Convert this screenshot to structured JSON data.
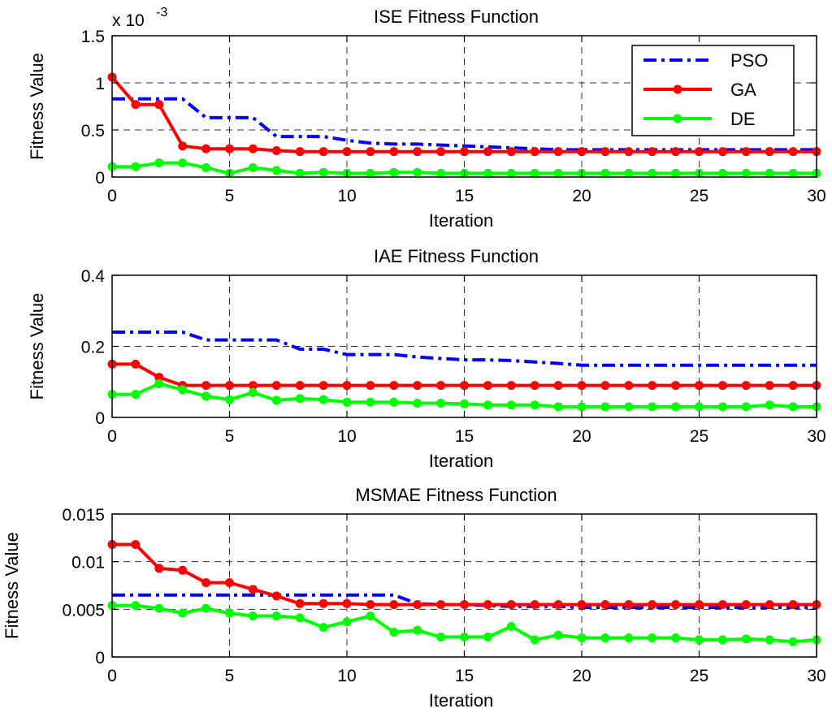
{
  "chart_data": [
    {
      "type": "line",
      "title": "ISE Fitness Function",
      "xlabel": "Iteration",
      "ylabel": "Fitness Value",
      "exponent_label": "x 10",
      "exponent_power": "-3",
      "xlim": [
        0,
        30
      ],
      "ylim": [
        0,
        1.5
      ],
      "xticks": [
        0,
        5,
        10,
        15,
        20,
        25,
        30
      ],
      "yticks": [
        0,
        0.5,
        1,
        1.5
      ],
      "ytick_labels": [
        "0",
        "0.5",
        "1",
        "1.5"
      ],
      "grid": true,
      "legend": {
        "placement": "top-right",
        "entries": [
          "PSO",
          "GA",
          "DE"
        ]
      },
      "x": [
        0,
        1,
        2,
        3,
        4,
        5,
        6,
        7,
        8,
        9,
        10,
        11,
        12,
        13,
        14,
        15,
        16,
        17,
        18,
        19,
        20,
        21,
        22,
        23,
        24,
        25,
        26,
        27,
        28,
        29,
        30
      ],
      "series": [
        {
          "name": "PSO",
          "color": "#0000ff",
          "style": "dashdot",
          "markers": false,
          "values": [
            0.83,
            0.83,
            0.83,
            0.83,
            0.63,
            0.63,
            0.63,
            0.43,
            0.43,
            0.43,
            0.39,
            0.36,
            0.35,
            0.35,
            0.34,
            0.33,
            0.32,
            0.31,
            0.3,
            0.29,
            0.29,
            0.29,
            0.29,
            0.29,
            0.29,
            0.29,
            0.29,
            0.29,
            0.29,
            0.29,
            0.29
          ]
        },
        {
          "name": "GA",
          "color": "#ff0000",
          "style": "solid",
          "markers": true,
          "values": [
            1.06,
            0.77,
            0.77,
            0.33,
            0.3,
            0.3,
            0.3,
            0.28,
            0.27,
            0.27,
            0.27,
            0.27,
            0.27,
            0.27,
            0.27,
            0.27,
            0.27,
            0.27,
            0.27,
            0.27,
            0.27,
            0.27,
            0.27,
            0.27,
            0.27,
            0.27,
            0.27,
            0.27,
            0.27,
            0.27,
            0.27
          ]
        },
        {
          "name": "DE",
          "color": "#00ff00",
          "style": "solid",
          "markers": true,
          "values": [
            0.11,
            0.11,
            0.15,
            0.15,
            0.1,
            0.04,
            0.1,
            0.07,
            0.04,
            0.05,
            0.04,
            0.04,
            0.05,
            0.05,
            0.04,
            0.04,
            0.04,
            0.04,
            0.04,
            0.04,
            0.04,
            0.04,
            0.04,
            0.04,
            0.04,
            0.04,
            0.04,
            0.04,
            0.04,
            0.04,
            0.04
          ]
        }
      ]
    },
    {
      "type": "line",
      "title": "IAE Fitness Function",
      "xlabel": "Iteration",
      "ylabel": "Fitness Value",
      "xlim": [
        0,
        30
      ],
      "ylim": [
        0,
        0.4
      ],
      "xticks": [
        0,
        5,
        10,
        15,
        20,
        25,
        30
      ],
      "yticks": [
        0,
        0.2,
        0.4
      ],
      "ytick_labels": [
        "0",
        "0.2",
        "0.4"
      ],
      "grid": true,
      "x": [
        0,
        1,
        2,
        3,
        4,
        5,
        6,
        7,
        8,
        9,
        10,
        11,
        12,
        13,
        14,
        15,
        16,
        17,
        18,
        19,
        20,
        21,
        22,
        23,
        24,
        25,
        26,
        27,
        28,
        29,
        30
      ],
      "series": [
        {
          "name": "PSO",
          "color": "#0000ff",
          "style": "dashdot",
          "markers": false,
          "values": [
            0.24,
            0.24,
            0.24,
            0.24,
            0.218,
            0.218,
            0.218,
            0.218,
            0.192,
            0.192,
            0.177,
            0.177,
            0.177,
            0.17,
            0.166,
            0.162,
            0.162,
            0.16,
            0.156,
            0.152,
            0.147,
            0.147,
            0.147,
            0.147,
            0.147,
            0.147,
            0.147,
            0.147,
            0.147,
            0.147,
            0.147
          ]
        },
        {
          "name": "GA",
          "color": "#ff0000",
          "style": "solid",
          "markers": true,
          "values": [
            0.15,
            0.15,
            0.113,
            0.09,
            0.09,
            0.09,
            0.09,
            0.09,
            0.09,
            0.09,
            0.09,
            0.09,
            0.09,
            0.09,
            0.09,
            0.09,
            0.09,
            0.09,
            0.09,
            0.09,
            0.09,
            0.09,
            0.09,
            0.09,
            0.09,
            0.09,
            0.09,
            0.09,
            0.09,
            0.09,
            0.09
          ]
        },
        {
          "name": "DE",
          "color": "#00ff00",
          "style": "solid",
          "markers": true,
          "values": [
            0.065,
            0.065,
            0.095,
            0.078,
            0.06,
            0.05,
            0.07,
            0.048,
            0.053,
            0.05,
            0.043,
            0.043,
            0.043,
            0.04,
            0.04,
            0.038,
            0.035,
            0.035,
            0.035,
            0.03,
            0.03,
            0.03,
            0.03,
            0.03,
            0.03,
            0.03,
            0.03,
            0.03,
            0.035,
            0.03,
            0.03
          ]
        }
      ]
    },
    {
      "type": "line",
      "title": "MSMAE Fitness Function",
      "xlabel": "Iteration",
      "ylabel": "Fitness Value",
      "xlim": [
        0,
        30
      ],
      "ylim": [
        0,
        0.015
      ],
      "xticks": [
        0,
        5,
        10,
        15,
        20,
        25,
        30
      ],
      "yticks": [
        0,
        0.005,
        0.01,
        0.015
      ],
      "ytick_labels": [
        "0",
        "0.005",
        "0.01",
        "0.015"
      ],
      "grid": true,
      "x": [
        0,
        1,
        2,
        3,
        4,
        5,
        6,
        7,
        8,
        9,
        10,
        11,
        12,
        13,
        14,
        15,
        16,
        17,
        18,
        19,
        20,
        21,
        22,
        23,
        24,
        25,
        26,
        27,
        28,
        29,
        30
      ],
      "series": [
        {
          "name": "PSO",
          "color": "#0000ff",
          "style": "dashdot",
          "markers": false,
          "values": [
            0.0065,
            0.0065,
            0.0065,
            0.0065,
            0.0065,
            0.0065,
            0.0065,
            0.0065,
            0.0065,
            0.0065,
            0.0065,
            0.0065,
            0.0065,
            0.0056,
            0.0055,
            0.0055,
            0.0054,
            0.0053,
            0.0053,
            0.0053,
            0.0052,
            0.0052,
            0.0052,
            0.0052,
            0.0052,
            0.0052,
            0.0052,
            0.0052,
            0.0052,
            0.0052,
            0.0052
          ]
        },
        {
          "name": "GA",
          "color": "#ff0000",
          "style": "solid",
          "markers": true,
          "values": [
            0.0118,
            0.0118,
            0.0093,
            0.0091,
            0.0078,
            0.0078,
            0.0071,
            0.0064,
            0.0056,
            0.0056,
            0.0056,
            0.0055,
            0.0055,
            0.0055,
            0.0055,
            0.0055,
            0.0055,
            0.0055,
            0.0055,
            0.0055,
            0.0055,
            0.0055,
            0.0055,
            0.0055,
            0.0055,
            0.0055,
            0.0055,
            0.0055,
            0.0055,
            0.0055,
            0.0055
          ]
        },
        {
          "name": "DE",
          "color": "#00ff00",
          "style": "solid",
          "markers": true,
          "values": [
            0.0054,
            0.0054,
            0.0051,
            0.0046,
            0.0051,
            0.0046,
            0.0043,
            0.0043,
            0.0041,
            0.0031,
            0.0037,
            0.0043,
            0.0026,
            0.0028,
            0.0021,
            0.0021,
            0.0021,
            0.0032,
            0.0018,
            0.0023,
            0.002,
            0.002,
            0.002,
            0.002,
            0.002,
            0.0018,
            0.0018,
            0.0019,
            0.0018,
            0.0016,
            0.0018
          ]
        }
      ]
    }
  ]
}
